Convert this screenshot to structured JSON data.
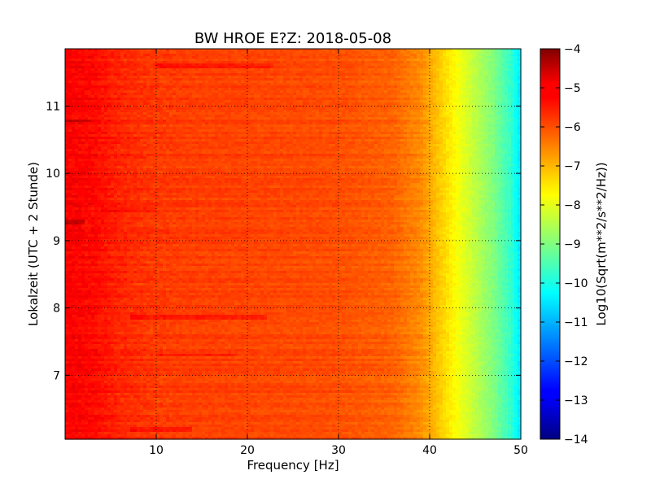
{
  "chart_data": {
    "type": "heatmap",
    "title": "BW HROE E?Z: 2018-05-08",
    "xlabel": "Frequency [Hz]",
    "ylabel": "Lokalzeit (UTC + 2 Stunde)",
    "colorbar_label": "Log10(Sqrt(m**2/s**2/Hz))",
    "xlim": [
      0,
      50
    ],
    "ylim": [
      11.85,
      6.05
    ],
    "x_ticks": [
      10,
      20,
      30,
      40,
      50
    ],
    "x_tick_labels": [
      "10",
      "20",
      "30",
      "40",
      "50"
    ],
    "y_ticks": [
      7,
      8,
      9,
      10,
      11
    ],
    "y_tick_labels": [
      "7",
      "8",
      "9",
      "10",
      "11"
    ],
    "colorbar_range": [
      -14,
      -4
    ],
    "colorbar_ticks": [
      -4,
      -5,
      -6,
      -7,
      -8,
      -9,
      -10,
      -11,
      -12,
      -13,
      -14
    ],
    "colorbar_tick_labels": [
      "−4",
      "−5",
      "−6",
      "−7",
      "−8",
      "−9",
      "−10",
      "−11",
      "−12",
      "−13",
      "−14"
    ],
    "colormap": "jet",
    "grid": true,
    "spectral_profile": {
      "frequency_hz": [
        0,
        3,
        6,
        10,
        20,
        30,
        36,
        39,
        41,
        43,
        45,
        47,
        49,
        50
      ],
      "log10_psd": [
        -5.2,
        -5.3,
        -5.6,
        -5.8,
        -5.9,
        -6.0,
        -6.2,
        -6.6,
        -7.2,
        -7.8,
        -8.4,
        -9.0,
        -9.8,
        -10.5
      ]
    },
    "notable_rows": [
      {
        "time": 6.2,
        "freq_range": [
          7,
          14
        ],
        "delta": 0.35
      },
      {
        "time": 7.3,
        "freq_range": [
          10,
          19
        ],
        "delta": 0.3
      },
      {
        "time": 7.87,
        "freq_range": [
          7,
          22
        ],
        "delta": 0.4
      },
      {
        "time": 9.28,
        "freq_range": [
          0,
          2
        ],
        "delta": 0.6
      },
      {
        "time": 9.45,
        "freq_range": [
          4,
          10
        ],
        "delta": 0.25
      },
      {
        "time": 10.78,
        "freq_range": [
          0,
          3
        ],
        "delta": 0.45
      },
      {
        "time": 11.6,
        "freq_range": [
          10,
          23
        ],
        "delta": 0.35
      }
    ]
  }
}
